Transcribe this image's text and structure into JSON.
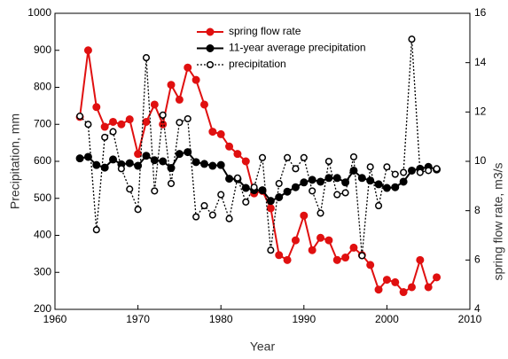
{
  "chart_data": {
    "type": "line",
    "xlabel": "Year",
    "ylabel": "Precipitation, mm",
    "y2label": "spring flow rate, m3/s",
    "xlim": [
      1960,
      2010
    ],
    "xticks": [
      1960,
      1970,
      1980,
      1990,
      2000,
      2010
    ],
    "ylim": [
      200,
      1000
    ],
    "yticks": [
      200,
      300,
      400,
      500,
      600,
      700,
      800,
      900,
      1000
    ],
    "y2lim": [
      4,
      16
    ],
    "y2ticks": [
      4,
      6,
      8,
      10,
      12,
      14,
      16
    ],
    "legend": "upper center",
    "x": [
      1963,
      1964,
      1965,
      1966,
      1967,
      1968,
      1969,
      1970,
      1971,
      1972,
      1973,
      1974,
      1975,
      1976,
      1977,
      1978,
      1979,
      1980,
      1981,
      1982,
      1983,
      1984,
      1985,
      1986,
      1987,
      1988,
      1989,
      1990,
      1991,
      1992,
      1993,
      1994,
      1995,
      1996,
      1997,
      1998,
      1999,
      2000,
      2001,
      2002,
      2003,
      2004,
      2005,
      2006
    ],
    "series": [
      {
        "name": "spring flow rate",
        "color": "#e01010",
        "axis": "y2",
        "line_style": "solid",
        "marker_fill": "filled",
        "values": [
          11.8,
          14.5,
          12.2,
          11.4,
          11.6,
          11.5,
          11.7,
          10.3,
          11.6,
          12.3,
          11.5,
          13.1,
          12.5,
          13.8,
          13.3,
          12.3,
          11.2,
          11.1,
          10.6,
          10.3,
          10.0,
          8.7,
          8.8,
          8.1,
          6.2,
          6.0,
          6.8,
          7.8,
          6.4,
          6.9,
          6.8,
          6.0,
          6.1,
          6.5,
          6.2,
          5.8,
          4.8,
          5.2,
          5.1,
          4.7,
          4.9,
          6.0,
          4.9,
          5.3
        ]
      },
      {
        "name": "11-year average precipitation",
        "color": "#000000",
        "line_style": "solid",
        "marker_fill": "filled",
        "values": [
          608,
          612,
          590,
          583,
          605,
          592,
          595,
          588,
          615,
          603,
          600,
          582,
          620,
          625,
          598,
          593,
          588,
          590,
          553,
          552,
          528,
          522,
          522,
          493,
          503,
          518,
          530,
          543,
          550,
          545,
          555,
          555,
          543,
          575,
          555,
          548,
          538,
          528,
          530,
          545,
          575,
          580,
          585,
          578
        ]
      },
      {
        "name": "precipitation",
        "color": "#000000",
        "line_style": "dotted",
        "marker_fill": "open",
        "values": [
          722,
          700,
          415,
          665,
          680,
          580,
          525,
          470,
          880,
          520,
          725,
          540,
          705,
          715,
          450,
          480,
          455,
          510,
          445,
          555,
          490,
          530,
          610,
          360,
          540,
          610,
          580,
          610,
          520,
          460,
          600,
          510,
          515,
          612,
          345,
          585,
          480,
          585,
          565,
          570,
          930,
          570,
          575,
          580
        ]
      }
    ]
  }
}
